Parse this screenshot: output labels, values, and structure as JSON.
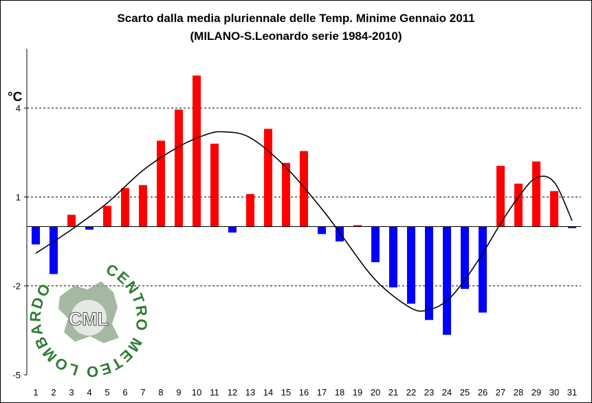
{
  "chart_data": {
    "type": "bar",
    "title": "Scarto dalla media pluriennale delle Temp. Minime Gennaio 2011",
    "subtitle": "(MILANO-S.Leonardo serie 1984-2010)",
    "ylabel": "°C",
    "xlabel": "",
    "categories": [
      "1",
      "2",
      "3",
      "4",
      "5",
      "6",
      "7",
      "8",
      "9",
      "10",
      "11",
      "12",
      "13",
      "14",
      "15",
      "16",
      "17",
      "18",
      "19",
      "20",
      "21",
      "22",
      "23",
      "24",
      "25",
      "26",
      "27",
      "28",
      "29",
      "30",
      "31"
    ],
    "values": [
      -0.6,
      -1.6,
      0.4,
      -0.1,
      0.7,
      1.3,
      1.4,
      2.9,
      3.95,
      5.1,
      2.8,
      -0.2,
      1.1,
      3.3,
      2.15,
      2.55,
      -0.25,
      -0.5,
      0.05,
      -1.2,
      -2.05,
      -2.6,
      -3.15,
      -3.65,
      -2.1,
      -2.9,
      2.05,
      1.45,
      2.2,
      1.2,
      -0.05
    ],
    "trend": {
      "type": "smoothed-line",
      "x": [
        1,
        3,
        5,
        7,
        9,
        10.5,
        11.5,
        13,
        15,
        17,
        18,
        20,
        22,
        23,
        24,
        25,
        26,
        27,
        28,
        29,
        30,
        31
      ],
      "y": [
        -0.9,
        -0.1,
        0.8,
        1.9,
        2.7,
        3.1,
        3.2,
        3.0,
        2.0,
        0.6,
        -0.2,
        -1.8,
        -2.75,
        -2.8,
        -2.5,
        -1.8,
        -0.9,
        0.1,
        1.0,
        1.65,
        1.5,
        0.2
      ]
    },
    "yticks": [
      4,
      1,
      -2,
      -5
    ],
    "ylim": [
      -5,
      6
    ],
    "gridlines": "dashed at y ticks",
    "colors": {
      "positive": "#ff0000",
      "negative": "#0000ff",
      "trend": "#000000"
    }
  },
  "logo": {
    "arc_text": "CENTRO METEO LOMBARDO",
    "center_text": "CML",
    "color": "#2e7d32"
  }
}
